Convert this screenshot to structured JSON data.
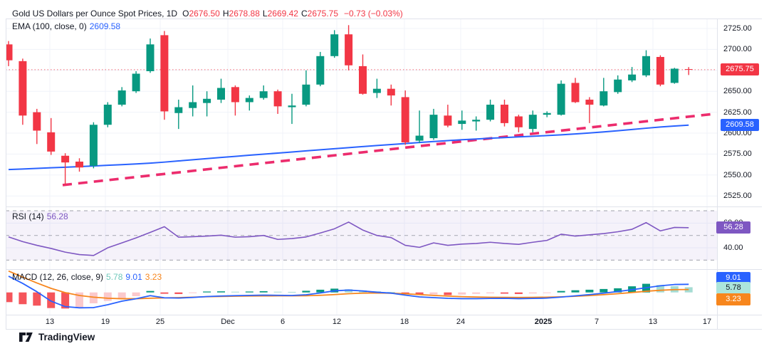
{
  "header": {
    "title": "Gold US Dollars per Ounce Spot Prices, 1D",
    "ohlc": [
      {
        "k": "O",
        "v": "2676.50"
      },
      {
        "k": "H",
        "v": "2678.88"
      },
      {
        "k": "L",
        "v": "2669.42"
      },
      {
        "k": "C",
        "v": "2675.75"
      }
    ],
    "change": "−0.73 (−0.03%)",
    "ema_label": "EMA (100, close, 0)",
    "ema_value": "2609.58",
    "rsi_label": "RSI (14)",
    "rsi_value": "56.28",
    "macd_label": "MACD (12, 26, close, 9)",
    "macd_values": [
      {
        "text": "5.78",
        "color": "#70c8bb"
      },
      {
        "text": "9.01",
        "color": "#2962ff"
      },
      {
        "text": "3.23",
        "color": "#f7861d"
      }
    ]
  },
  "colors": {
    "up": "#089981",
    "down": "#f23645",
    "ema": "#2962ff",
    "trend": "#ec2c6d",
    "last_price_line": "#f23645",
    "rsi": "#7e57c2",
    "rsi_band": "#7e57c2",
    "macd_line": "#2962ff",
    "signal_line": "#f7861d",
    "hist_grow_above": "#089981",
    "hist_fall_above": "#a5dcd3",
    "hist_grow_below": "#fbc9cc",
    "hist_fall_below": "#f5555b",
    "grid": "#f0f3fa",
    "border": "#e0e3eb",
    "text": "#131722",
    "level_dash": "#787b86"
  },
  "price_axis": {
    "labels": [
      {
        "text": "2725.00",
        "price": 2725
      },
      {
        "text": "2700.00",
        "price": 2700
      },
      {
        "text": "2650.00",
        "price": 2650
      },
      {
        "text": "2625.00",
        "price": 2625
      },
      {
        "text": "2600.00",
        "price": 2600
      },
      {
        "text": "2575.00",
        "price": 2575
      },
      {
        "text": "2550.00",
        "price": 2550
      },
      {
        "text": "2525.00",
        "price": 2525
      }
    ],
    "badges": [
      {
        "text": "2675.75",
        "price": 2675.75,
        "bg": "#f23645",
        "fg": "#ffffff"
      },
      {
        "text": "2609.58",
        "price": 2609.58,
        "bg": "#2962ff",
        "fg": "#ffffff"
      }
    ]
  },
  "rsi_axis": {
    "labels": [
      {
        "text": "60.00",
        "value": 60
      },
      {
        "text": "40.00",
        "value": 40
      }
    ],
    "badge": {
      "text": "56.28",
      "value": 56.28,
      "bg": "#7e57c2",
      "fg": "#ffffff"
    }
  },
  "macd_axis": {
    "badges": [
      {
        "text": "9.01",
        "bg": "#2962ff",
        "fg": "#ffffff"
      },
      {
        "text": "5.78",
        "bg": "#ace5dc",
        "fg": "#131722"
      },
      {
        "text": "3.23",
        "bg": "#f7861d",
        "fg": "#ffffff"
      }
    ]
  },
  "time_axis": {
    "labels": [
      {
        "text": "13",
        "x": 70,
        "bold": false
      },
      {
        "text": "19",
        "x": 148,
        "bold": false
      },
      {
        "text": "25",
        "x": 225,
        "bold": false
      },
      {
        "text": "Dec",
        "x": 320,
        "bold": false
      },
      {
        "text": "6",
        "x": 397,
        "bold": false
      },
      {
        "text": "12",
        "x": 473,
        "bold": false
      },
      {
        "text": "18",
        "x": 568,
        "bold": false
      },
      {
        "text": "24",
        "x": 647,
        "bold": false
      },
      {
        "text": "2025",
        "x": 763,
        "bold": true
      },
      {
        "text": "7",
        "x": 838,
        "bold": false
      },
      {
        "text": "13",
        "x": 917,
        "bold": false
      },
      {
        "text": "17",
        "x": 993,
        "bold": false
      }
    ]
  },
  "footer": {
    "brand": "TradingView"
  },
  "chart_data": [
    {
      "type": "candlestick",
      "title": "Gold US Dollars per Ounce Spot Prices",
      "interval": "1D",
      "last_price": 2675.75,
      "y_range": [
        2520,
        2735
      ],
      "y_ticks": [
        2525,
        2550,
        2575,
        2600,
        2625,
        2650,
        2675,
        2700,
        2725
      ],
      "x_tick_labels": [
        "13",
        "19",
        "25",
        "Dec",
        "6",
        "12",
        "18",
        "24",
        "2025",
        "7",
        "13",
        "17"
      ],
      "candles": [
        [
          2706,
          2710,
          2680,
          2687
        ],
        [
          2686,
          2689,
          2610,
          2621
        ],
        [
          2625,
          2629,
          2587,
          2603
        ],
        [
          2601,
          2618,
          2574,
          2578
        ],
        [
          2573,
          2576,
          2538,
          2565
        ],
        [
          2566,
          2570,
          2554,
          2559
        ],
        [
          2561,
          2613,
          2558,
          2610
        ],
        [
          2610,
          2637,
          2607,
          2634
        ],
        [
          2634,
          2655,
          2632,
          2651
        ],
        [
          2650,
          2674,
          2648,
          2671
        ],
        [
          2674,
          2713,
          2672,
          2706
        ],
        [
          2717,
          2722,
          2616,
          2626
        ],
        [
          2624,
          2640,
          2605,
          2631
        ],
        [
          2630,
          2657,
          2620,
          2637
        ],
        [
          2636,
          2650,
          2620,
          2641
        ],
        [
          2640,
          2665,
          2636,
          2654
        ],
        [
          2655,
          2657,
          2621,
          2637
        ],
        [
          2637,
          2645,
          2627,
          2642
        ],
        [
          2642,
          2657,
          2640,
          2650
        ],
        [
          2650,
          2652,
          2623,
          2632
        ],
        [
          2631,
          2647,
          2611,
          2633
        ],
        [
          2634,
          2675,
          2632,
          2658
        ],
        [
          2658,
          2697,
          2656,
          2692
        ],
        [
          2692,
          2723,
          2690,
          2718
        ],
        [
          2718,
          2729,
          2675,
          2681
        ],
        [
          2680,
          2694,
          2646,
          2647
        ],
        [
          2648,
          2665,
          2642,
          2653
        ],
        [
          2653,
          2658,
          2633,
          2645
        ],
        [
          2643,
          2651,
          2586,
          2589
        ],
        [
          2591,
          2627,
          2588,
          2597
        ],
        [
          2594,
          2629,
          2592,
          2622
        ],
        [
          2621,
          2634,
          2607,
          2609
        ],
        [
          2611,
          2627,
          2604,
          2615
        ],
        [
          2614,
          2620,
          2603,
          2616
        ],
        [
          2616,
          2640,
          2614,
          2634
        ],
        [
          2634,
          2640,
          2608,
          2612
        ],
        [
          2620,
          2622,
          2601,
          2607
        ],
        [
          2605,
          2627,
          2601,
          2622
        ],
        [
          2622,
          2626,
          2619,
          2624
        ],
        [
          2622,
          2663,
          2621,
          2659
        ],
        [
          2660,
          2666,
          2636,
          2637
        ],
        [
          2640,
          2643,
          2612,
          2634
        ],
        [
          2633,
          2666,
          2632,
          2650
        ],
        [
          2649,
          2669,
          2647,
          2664
        ],
        [
          2663,
          2679,
          2661,
          2670
        ],
        [
          2669,
          2699,
          2667,
          2692
        ],
        [
          2691,
          2693,
          2656,
          2658
        ],
        [
          2660,
          2678,
          2659,
          2677
        ],
        [
          2676.5,
          2678.88,
          2669.42,
          2675.75
        ]
      ],
      "ema_100": [
        2556.5,
        2557.2,
        2557.9,
        2558.6,
        2559.3,
        2560,
        2560.8,
        2561.6,
        2562.4,
        2563.2,
        2564.2,
        2565.4,
        2566.8,
        2568.2,
        2569.6,
        2571,
        2572.3,
        2573.6,
        2574.9,
        2576.2,
        2577.5,
        2578.8,
        2580.1,
        2581.4,
        2582.7,
        2584,
        2585.2,
        2586.4,
        2587.6,
        2588.8,
        2590,
        2591.1,
        2592.1,
        2593,
        2593.9,
        2594.7,
        2595.5,
        2596.3,
        2597.1,
        2598,
        2599,
        2600.2,
        2601.5,
        2602.9,
        2604.4,
        2605.9,
        2607.3,
        2608.5,
        2609.58
      ],
      "trendline": {
        "x1": 88,
        "price1": 2538,
        "x2": 1003,
        "price2": 2623,
        "style": "dashed"
      }
    },
    {
      "type": "line",
      "name": "RSI (14)",
      "last": 56.28,
      "levels": {
        "upper": 70,
        "middle": 50,
        "lower": 30
      },
      "axis_ticks": [
        60,
        40
      ],
      "values": [
        48.8,
        45,
        42,
        39.5,
        36.5,
        34.5,
        33.8,
        40,
        44,
        48,
        52.5,
        57.1,
        48.6,
        49,
        49.5,
        50.2,
        48.6,
        49,
        50,
        46.8,
        47.5,
        48.8,
        52,
        55.4,
        60.8,
        54.4,
        50,
        48.3,
        42,
        40.4,
        44,
        42,
        43,
        43.5,
        44.5,
        43.5,
        42.8,
        44.5,
        46,
        51,
        49.5,
        50.5,
        51.5,
        53,
        55,
        60.4,
        53.7,
        56.5,
        56.28
      ]
    },
    {
      "type": "bar",
      "name": "MACD (12, 26, close, 9)",
      "last": {
        "histogram": 5.78,
        "macd": 9.01,
        "signal": 3.23
      },
      "histogram": [
        -10.8,
        -13.1,
        -14.7,
        -17.4,
        -17.9,
        -17.4,
        -12.1,
        -9.5,
        -6.8,
        -4.2,
        1.6,
        -1.5,
        -1.8,
        -0.8,
        1.0,
        1.2,
        0.8,
        1.0,
        1.4,
        0.8,
        0.6,
        1.8,
        3.0,
        4.2,
        3.5,
        2.2,
        1.2,
        0.5,
        -1.5,
        -2.6,
        -2.2,
        -3.0,
        -2.4,
        -1.6,
        -1.0,
        -1.4,
        -1.8,
        -1.2,
        -0.5,
        1.6,
        2.4,
        3.0,
        3.8,
        4.6,
        6.8,
        9.6,
        8.2,
        6.9,
        5.78
      ],
      "macd": [
        18,
        10,
        0.8,
        -9.7,
        -15.8,
        -17.1,
        -16.9,
        -13.7,
        -9.7,
        -7.1,
        -3.6,
        -6.0,
        -6.3,
        -5.6,
        -4.6,
        -4.0,
        -3.6,
        -3.3,
        -3.0,
        -3.2,
        -3.4,
        -2.6,
        -0.6,
        1.8,
        2.6,
        1.6,
        0.2,
        -0.8,
        -3.0,
        -5.0,
        -5.8,
        -6.6,
        -6.9,
        -6.9,
        -6.7,
        -6.6,
        -6.9,
        -6.7,
        -6.3,
        -5.2,
        -3.8,
        -2.4,
        -0.8,
        1.0,
        3.0,
        5.2,
        7.4,
        8.8,
        9.01
      ],
      "signal": [
        23.8,
        17,
        10.5,
        4.5,
        -0.2,
        -3.4,
        -5.3,
        -6.5,
        -7.0,
        -7.0,
        -6.5,
        -6.1,
        -5.8,
        -5.3,
        -4.8,
        -4.5,
        -4.2,
        -4.0,
        -3.9,
        -3.8,
        -3.8,
        -3.7,
        -3.2,
        -2.4,
        -1.4,
        -0.8,
        -0.6,
        -0.9,
        -1.5,
        -2.4,
        -3.3,
        -4.1,
        -4.7,
        -5.1,
        -5.4,
        -5.5,
        -5.6,
        -5.5,
        -5.3,
        -4.9,
        -4.3,
        -3.5,
        -2.5,
        -1.4,
        -0.1,
        1.3,
        2.4,
        3.1,
        3.23
      ]
    }
  ]
}
